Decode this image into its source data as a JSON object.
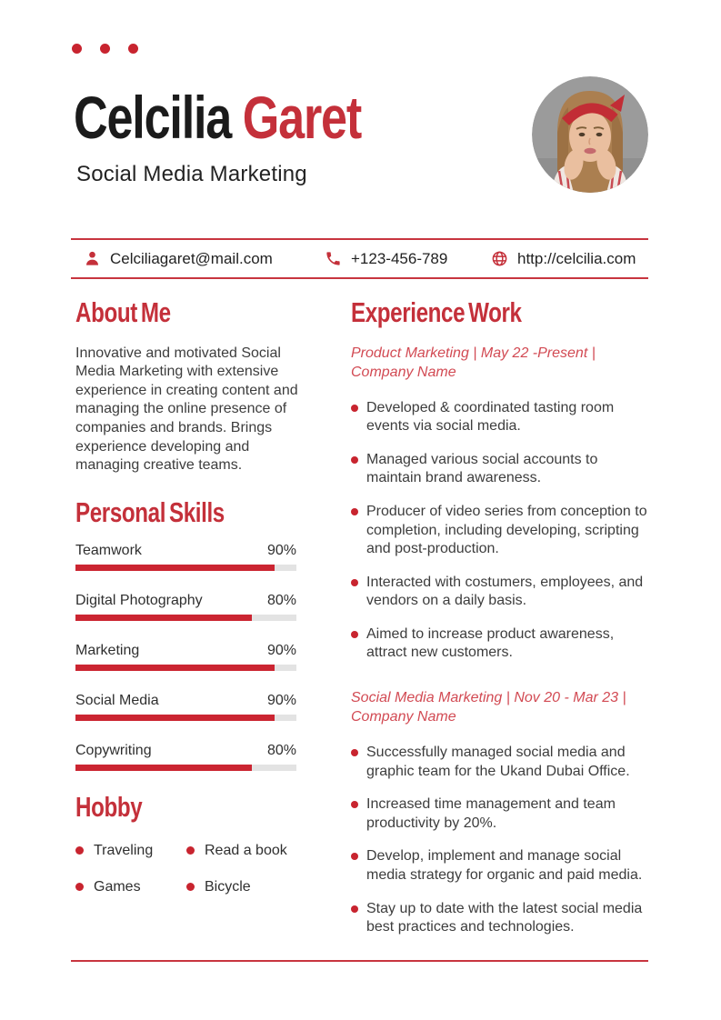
{
  "header": {
    "name_first": "Celcilia",
    "name_last": "Garet",
    "subtitle": "Social Media Marketing"
  },
  "contact": {
    "email": {
      "icon": "person-icon",
      "text": "Celciliagaret@mail.com"
    },
    "phone": {
      "icon": "phone-icon",
      "text": "+123-456-789"
    },
    "website": {
      "icon": "globe-icon",
      "text": "http://celcilia.com"
    }
  },
  "about": {
    "title": "About Me",
    "text": "Innovative and motivated Social Media Marketing with extensive experience in creating content and managing the online presence of companies and brands. Brings experience developing and managing creative teams."
  },
  "skills": {
    "title": "Personal Skills",
    "items": [
      {
        "label": "Teamwork",
        "percent": "90%",
        "value": 90
      },
      {
        "label": "Digital Photography",
        "percent": "80%",
        "value": 80
      },
      {
        "label": "Marketing",
        "percent": "90%",
        "value": 90
      },
      {
        "label": "Social Media",
        "percent": "90%",
        "value": 90
      },
      {
        "label": "Copywriting",
        "percent": "80%",
        "value": 80
      }
    ]
  },
  "hobby": {
    "title": "Hobby",
    "items": [
      "Traveling",
      "Read a book",
      "Games",
      "Bicycle"
    ]
  },
  "experience": {
    "title": "Experience Work",
    "jobs": [
      {
        "heading": "Product Marketing | May 22 -Present | Company Name",
        "bullets": [
          "Developed & coordinated tasting room events via social media.",
          "Managed various social accounts to maintain brand awareness.",
          "Producer of video series from conception to completion, including developing, scripting and post-production.",
          "Interacted with costumers, employees, and vendors on a daily basis.",
          "Aimed to increase product awareness, attract new customers."
        ]
      },
      {
        "heading": "Social Media Marketing | Nov 20 - Mar 23 | Company Name",
        "bullets": [
          "Successfully managed social media and graphic team for the Ukand Dubai Office.",
          "Increased time management and team productivity by 20%.",
          "Develop, implement and manage social media strategy for organic and paid media.",
          "Stay up to date with the latest social media best practices and technologies."
        ]
      }
    ]
  },
  "colors": {
    "accent": "#c4303a",
    "bar_fill": "#cb2531",
    "rule": "#c8353f",
    "job_heading": "#d24a53",
    "body_text": "#3d3d3d"
  }
}
